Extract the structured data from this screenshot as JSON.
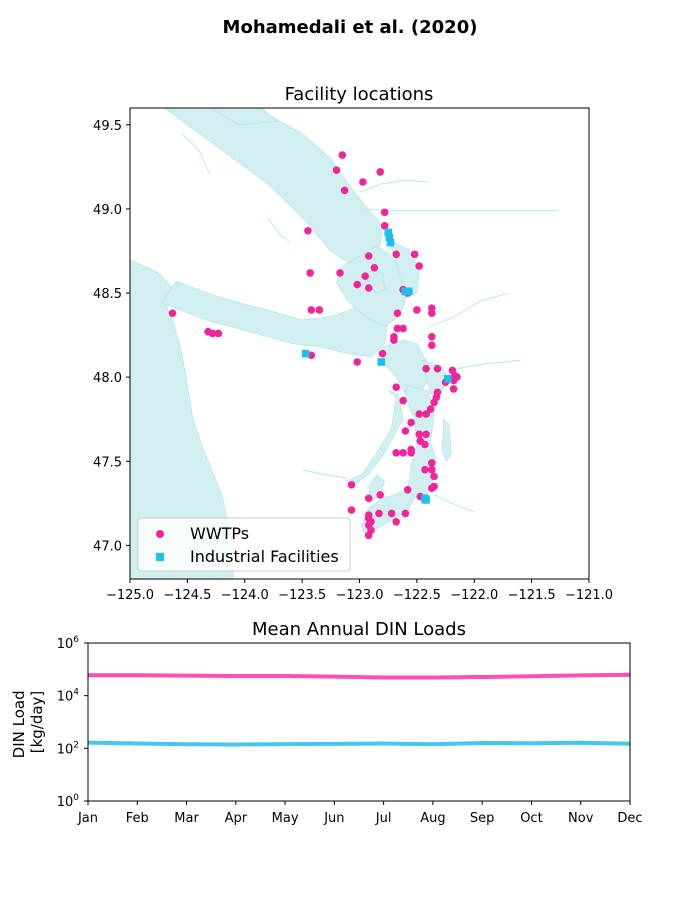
{
  "figure": {
    "suptitle": "Mohamedali et al. (2020)"
  },
  "colors": {
    "wwtp": "#f0259a",
    "industrial": "#1ac0ee",
    "water": "#d2eff0",
    "water_edge": "#a8e4ea",
    "wwtp_line": "#ff4fb0",
    "industrial_line": "#45c6f0"
  },
  "chart_data": [
    {
      "type": "scatter",
      "title": "Facility locations",
      "xlabel": "",
      "ylabel": "",
      "xlim": [
        -125.0,
        -121.0
      ],
      "ylim": [
        46.8,
        49.6
      ],
      "xticks": [
        -125.0,
        -124.5,
        -124.0,
        -123.5,
        -123.0,
        -122.5,
        -122.0,
        -121.5,
        -121.0
      ],
      "xtick_labels": [
        "−125.0",
        "−124.5",
        "−124.0",
        "−123.5",
        "−123.0",
        "−122.5",
        "−122.0",
        "−121.5",
        "−121.0"
      ],
      "yticks": [
        47.0,
        47.5,
        48.0,
        48.5,
        49.0,
        49.5
      ],
      "ytick_labels": [
        "47.0",
        "47.5",
        "48.0",
        "48.5",
        "49.0",
        "49.5"
      ],
      "legend": {
        "position": "lower-left",
        "entries": [
          "WWTPs",
          "Industrial Facilities"
        ]
      },
      "series": [
        {
          "name": "WWTPs",
          "marker": "circle",
          "points": [
            [
              -123.15,
              49.32
            ],
            [
              -123.2,
              49.23
            ],
            [
              -123.13,
              49.11
            ],
            [
              -122.97,
              49.16
            ],
            [
              -122.82,
              49.22
            ],
            [
              -122.78,
              48.98
            ],
            [
              -122.78,
              48.9
            ],
            [
              -123.45,
              48.87
            ],
            [
              -122.68,
              48.73
            ],
            [
              -122.52,
              48.73
            ],
            [
              -122.48,
              48.66
            ],
            [
              -122.92,
              48.72
            ],
            [
              -122.87,
              48.65
            ],
            [
              -122.95,
              48.6
            ],
            [
              -123.17,
              48.62
            ],
            [
              -123.43,
              48.62
            ],
            [
              -123.02,
              48.55
            ],
            [
              -122.92,
              48.53
            ],
            [
              -122.62,
              48.52
            ],
            [
              -122.58,
              48.5
            ],
            [
              -122.5,
              48.4
            ],
            [
              -122.37,
              48.41
            ],
            [
              -122.37,
              48.38
            ],
            [
              -122.67,
              48.38
            ],
            [
              -123.42,
              48.4
            ],
            [
              -123.35,
              48.4
            ],
            [
              -124.63,
              48.38
            ],
            [
              -124.32,
              48.27
            ],
            [
              -124.28,
              48.26
            ],
            [
              -124.23,
              48.26
            ],
            [
              -122.67,
              48.29
            ],
            [
              -122.62,
              48.29
            ],
            [
              -122.7,
              48.24
            ],
            [
              -122.7,
              48.22
            ],
            [
              -122.37,
              48.24
            ],
            [
              -122.37,
              48.19
            ],
            [
              -122.8,
              48.14
            ],
            [
              -123.42,
              48.13
            ],
            [
              -123.02,
              48.09
            ],
            [
              -122.32,
              48.05
            ],
            [
              -122.42,
              48.05
            ],
            [
              -122.19,
              48.04
            ],
            [
              -122.17,
              48.01
            ],
            [
              -122.15,
              48.0
            ],
            [
              -122.18,
              47.98
            ],
            [
              -122.25,
              47.97
            ],
            [
              -122.68,
              47.94
            ],
            [
              -122.18,
              47.93
            ],
            [
              -122.32,
              47.91
            ],
            [
              -122.33,
              47.88
            ],
            [
              -122.35,
              47.85
            ],
            [
              -122.62,
              47.86
            ],
            [
              -122.38,
              47.81
            ],
            [
              -122.42,
              47.78
            ],
            [
              -122.48,
              47.78
            ],
            [
              -122.55,
              47.73
            ],
            [
              -122.6,
              47.68
            ],
            [
              -122.48,
              47.66
            ],
            [
              -122.42,
              47.66
            ],
            [
              -122.47,
              47.62
            ],
            [
              -122.43,
              47.6
            ],
            [
              -122.55,
              47.57
            ],
            [
              -122.55,
              47.55
            ],
            [
              -122.68,
              47.55
            ],
            [
              -122.62,
              47.55
            ],
            [
              -122.37,
              47.49
            ],
            [
              -122.37,
              47.45
            ],
            [
              -122.43,
              47.45
            ],
            [
              -122.35,
              47.41
            ],
            [
              -122.37,
              47.34
            ],
            [
              -122.35,
              47.35
            ],
            [
              -122.58,
              47.33
            ],
            [
              -122.47,
              47.29
            ],
            [
              -122.82,
              47.3
            ],
            [
              -122.92,
              47.28
            ],
            [
              -123.07,
              47.36
            ],
            [
              -122.43,
              47.27
            ],
            [
              -123.07,
              47.21
            ],
            [
              -122.92,
              47.18
            ],
            [
              -122.92,
              47.16
            ],
            [
              -122.9,
              47.14
            ],
            [
              -122.92,
              47.12
            ],
            [
              -122.9,
              47.09
            ],
            [
              -122.92,
              47.06
            ],
            [
              -122.83,
              47.19
            ],
            [
              -122.72,
              47.19
            ],
            [
              -122.6,
              47.19
            ],
            [
              -122.68,
              47.14
            ]
          ]
        },
        {
          "name": "Industrial Facilities",
          "marker": "square",
          "points": [
            [
              -122.75,
              48.86
            ],
            [
              -122.74,
              48.83
            ],
            [
              -122.73,
              48.8
            ],
            [
              -122.6,
              48.51
            ],
            [
              -122.57,
              48.51
            ],
            [
              -123.47,
              48.14
            ],
            [
              -122.81,
              48.09
            ],
            [
              -122.23,
              47.99
            ],
            [
              -122.43,
              47.28
            ],
            [
              -122.42,
              47.27
            ]
          ]
        }
      ]
    },
    {
      "type": "line",
      "title": "Mean Annual DIN Loads",
      "xlabel": "",
      "ylabel": "DIN Load\n[kg/day]",
      "ylabel_lines": [
        "DIN Load",
        "[kg/day]"
      ],
      "yscale": "log",
      "ylim": [
        1,
        1000000
      ],
      "yticks": [
        1,
        100,
        10000,
        1000000
      ],
      "ytick_labels": [
        {
          "base": "10",
          "exp": "0"
        },
        {
          "base": "10",
          "exp": "2"
        },
        {
          "base": "10",
          "exp": "4"
        },
        {
          "base": "10",
          "exp": "6"
        }
      ],
      "categories": [
        "Jan",
        "Feb",
        "Mar",
        "Apr",
        "May",
        "Jun",
        "Jul",
        "Aug",
        "Sep",
        "Oct",
        "Nov",
        "Dec"
      ],
      "series": [
        {
          "color_key": "wwtp_line",
          "values": [
            60000,
            60000,
            58000,
            56000,
            56000,
            53000,
            49000,
            49000,
            51000,
            55000,
            59000,
            62000
          ]
        },
        {
          "color_key": "industrial_line",
          "values": [
            165,
            152,
            142,
            140,
            145,
            147,
            153,
            143,
            160,
            155,
            163,
            148
          ]
        }
      ]
    }
  ]
}
